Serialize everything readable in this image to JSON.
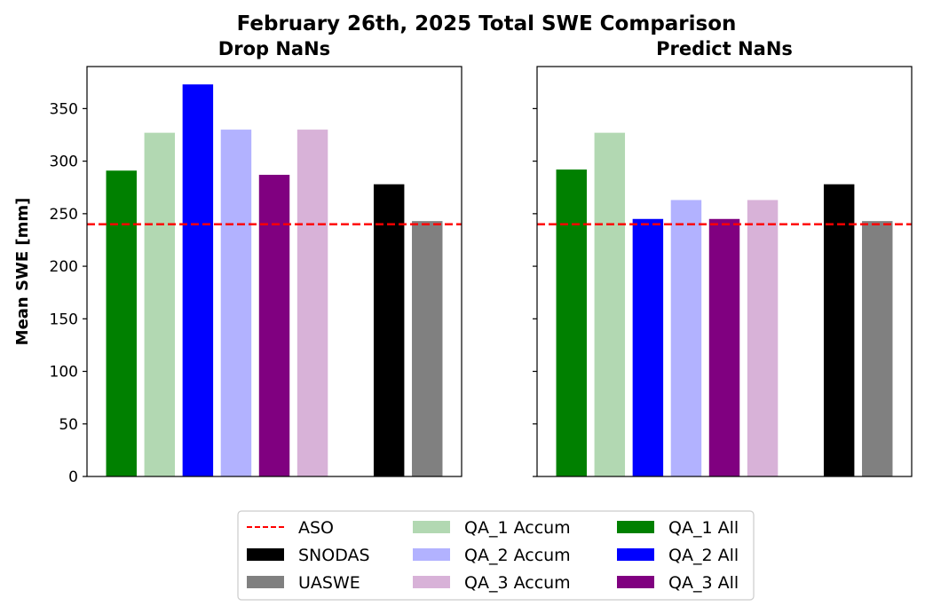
{
  "chart_data": {
    "suptitle": "February 26th, 2025 Total SWE Comparison",
    "ylabel": "Mean SWE [mm]",
    "ylim": [
      0,
      390
    ],
    "yticks": [
      "0",
      "50",
      "100",
      "150",
      "200",
      "250",
      "300",
      "350"
    ],
    "series_styles": [
      {
        "name": "QA_1 All",
        "color": "#008000"
      },
      {
        "name": "QA_1 Accum",
        "color": "#b2d8b2"
      },
      {
        "name": "QA_2 All",
        "color": "#0000ff"
      },
      {
        "name": "QA_2 Accum",
        "color": "#b2b2ff"
      },
      {
        "name": "QA_3 All",
        "color": "#800080"
      },
      {
        "name": "QA_3 Accum",
        "color": "#d8b2d8"
      },
      {
        "name": "SNODAS",
        "color": "#000000"
      },
      {
        "name": "UASWE",
        "color": "#808080"
      }
    ],
    "reference_line": {
      "name": "ASO",
      "value": 240,
      "color": "#ff0000",
      "style": "dashed"
    },
    "panels": [
      {
        "type": "bar",
        "title": "Drop NaNs",
        "values": [
          291,
          327,
          373,
          330,
          287,
          330,
          null,
          278,
          243
        ]
      },
      {
        "type": "bar",
        "title": "Predict NaNs",
        "values": [
          292,
          327,
          245,
          263,
          245,
          263,
          null,
          278,
          243
        ]
      }
    ],
    "bar_order": [
      "QA_1 All",
      "QA_1 Accum",
      "QA_2 All",
      "QA_2 Accum",
      "QA_3 All",
      "QA_3 Accum",
      null,
      "SNODAS",
      "UASWE"
    ],
    "legend": {
      "placement": "bottom-center",
      "entries": [
        {
          "label": "ASO",
          "kind": "line",
          "color": "#ff0000"
        },
        {
          "label": "SNODAS",
          "kind": "patch",
          "color": "#000000"
        },
        {
          "label": "UASWE",
          "kind": "patch",
          "color": "#808080"
        },
        {
          "label": "QA_1 Accum",
          "kind": "patch",
          "color": "#b2d8b2"
        },
        {
          "label": "QA_2 Accum",
          "kind": "patch",
          "color": "#b2b2ff"
        },
        {
          "label": "QA_3 Accum",
          "kind": "patch",
          "color": "#d8b2d8"
        },
        {
          "label": "QA_1 All",
          "kind": "patch",
          "color": "#008000"
        },
        {
          "label": "QA_2 All",
          "kind": "patch",
          "color": "#0000ff"
        },
        {
          "label": "QA_3 All",
          "kind": "patch",
          "color": "#800080"
        }
      ]
    }
  }
}
